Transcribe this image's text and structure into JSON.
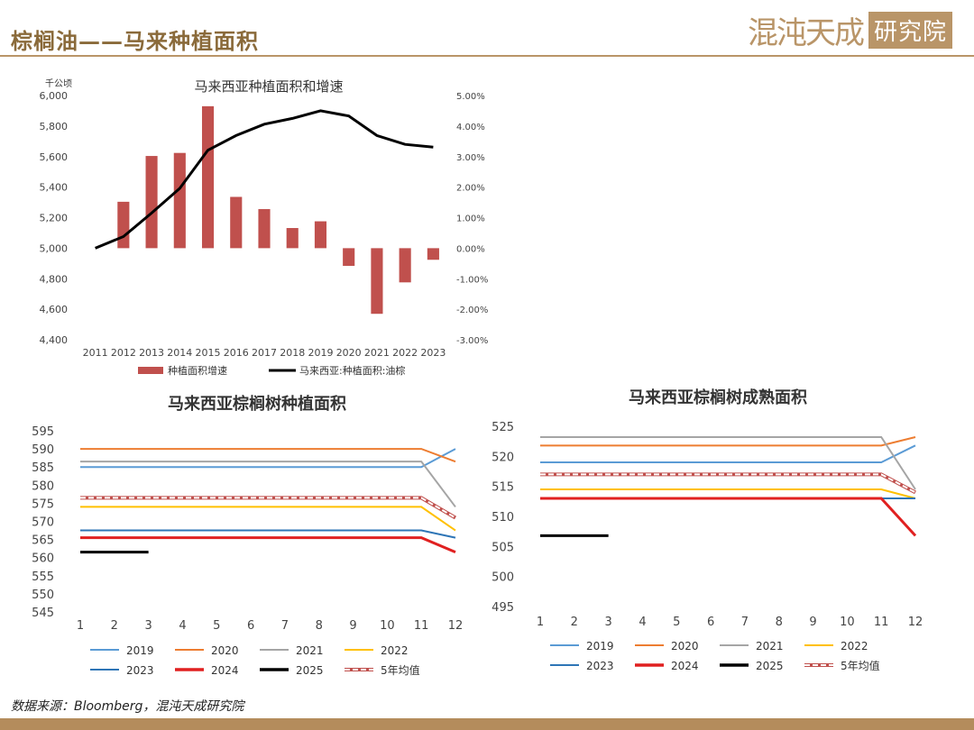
{
  "header": {
    "title": "棕榈油——马来种植面积",
    "logo_text": "混沌天成",
    "logo_box_text": "研究院"
  },
  "footer": {
    "source": "数据来源：Bloomberg，混沌天成研究院"
  },
  "colors": {
    "bar": "#c0504d",
    "line": "#000000",
    "brand": "#b99568",
    "s2019": "#5b9bd5",
    "s2020": "#ed7d31",
    "s2021": "#a5a5a5",
    "s2022": "#ffc000",
    "s2023": "#2e75b6",
    "s2024": "#e02020",
    "s2025": "#000000",
    "avg": "#c0504d"
  },
  "chart_data": [
    {
      "type": "bar+line",
      "title": "马来西亚种植面积和增速",
      "y_left_unit": "千公顷",
      "categories": [
        "2011",
        "2012",
        "2013",
        "2014",
        "2015",
        "2016",
        "2017",
        "2018",
        "2019",
        "2020",
        "2021",
        "2022",
        "2023"
      ],
      "y_left_lim": [
        4400,
        6000
      ],
      "y_left_ticks": [
        "4,400",
        "4,600",
        "4,800",
        "5,000",
        "5,200",
        "5,400",
        "5,600",
        "5,800",
        "6,000"
      ],
      "y_right_lim": [
        -3,
        5
      ],
      "y_right_ticks": [
        "-3.00%",
        "-2.00%",
        "-1.00%",
        "0.00%",
        "1.00%",
        "2.00%",
        "3.00%",
        "4.00%",
        "5.00%"
      ],
      "series": [
        {
          "name": "种植面积增速",
          "kind": "bar",
          "axis": "right",
          "values": [
            null,
            1.52,
            3.02,
            3.12,
            4.65,
            1.68,
            1.28,
            0.66,
            0.88,
            -0.58,
            -2.15,
            -1.12,
            -0.38
          ]
        },
        {
          "name": "马来西亚:种植面积:油棕",
          "kind": "line",
          "axis": "left",
          "values": [
            5000,
            5076,
            5230,
            5392,
            5642,
            5738,
            5812,
            5850,
            5900,
            5866,
            5738,
            5680,
            5662
          ]
        }
      ]
    },
    {
      "type": "line",
      "title": "马来西亚棕榈树种植面积",
      "x": [
        "1",
        "2",
        "3",
        "4",
        "5",
        "6",
        "7",
        "8",
        "9",
        "10",
        "11",
        "12"
      ],
      "ylim": [
        545,
        595
      ],
      "yticks": [
        "545",
        "550",
        "555",
        "560",
        "565",
        "570",
        "575",
        "580",
        "585",
        "590",
        "595"
      ],
      "series": [
        {
          "name": "2019",
          "color_key": "s2019",
          "values": [
            585,
            585,
            585,
            585,
            585,
            585,
            585,
            585,
            585,
            585,
            585,
            590
          ]
        },
        {
          "name": "2020",
          "color_key": "s2020",
          "values": [
            590,
            590,
            590,
            590,
            590,
            590,
            590,
            590,
            590,
            590,
            590,
            586.5
          ]
        },
        {
          "name": "2021",
          "color_key": "s2021",
          "values": [
            586.5,
            586.5,
            586.5,
            586.5,
            586.5,
            586.5,
            586.5,
            586.5,
            586.5,
            586.5,
            586.5,
            574
          ]
        },
        {
          "name": "2022",
          "color_key": "s2022",
          "values": [
            574,
            574,
            574,
            574,
            574,
            574,
            574,
            574,
            574,
            574,
            574,
            567.5
          ]
        },
        {
          "name": "2023",
          "color_key": "s2023",
          "values": [
            567.5,
            567.5,
            567.5,
            567.5,
            567.5,
            567.5,
            567.5,
            567.5,
            567.5,
            567.5,
            567.5,
            565.5
          ]
        },
        {
          "name": "2024",
          "color_key": "s2024",
          "values": [
            565.5,
            565.5,
            565.5,
            565.5,
            565.5,
            565.5,
            565.5,
            565.5,
            565.5,
            565.5,
            565.5,
            561.5
          ]
        },
        {
          "name": "2025",
          "color_key": "s2025",
          "values": [
            561.5,
            561.5,
            561.5,
            null,
            null,
            null,
            null,
            null,
            null,
            null,
            null,
            null
          ]
        },
        {
          "name": "5年均值",
          "color_key": "avg",
          "dashed": true,
          "values": [
            576.5,
            576.5,
            576.5,
            576.5,
            576.5,
            576.5,
            576.5,
            576.5,
            576.5,
            576.5,
            576.5,
            571
          ]
        }
      ]
    },
    {
      "type": "line",
      "title": "马来西亚棕榈树成熟面积",
      "x": [
        "1",
        "2",
        "3",
        "4",
        "5",
        "6",
        "7",
        "8",
        "9",
        "10",
        "11",
        "12"
      ],
      "ylim": [
        495,
        525
      ],
      "yticks": [
        "495",
        "500",
        "505",
        "510",
        "515",
        "520",
        "525"
      ],
      "series": [
        {
          "name": "2019",
          "color_key": "s2019",
          "values": [
            519,
            519,
            519,
            519,
            519,
            519,
            519,
            519,
            519,
            519,
            519,
            521.8
          ]
        },
        {
          "name": "2020",
          "color_key": "s2020",
          "values": [
            521.8,
            521.8,
            521.8,
            521.8,
            521.8,
            521.8,
            521.8,
            521.8,
            521.8,
            521.8,
            521.8,
            523.2
          ]
        },
        {
          "name": "2021",
          "color_key": "s2021",
          "values": [
            523.2,
            523.2,
            523.2,
            523.2,
            523.2,
            523.2,
            523.2,
            523.2,
            523.2,
            523.2,
            523.2,
            514.5
          ]
        },
        {
          "name": "2022",
          "color_key": "s2022",
          "values": [
            514.5,
            514.5,
            514.5,
            514.5,
            514.5,
            514.5,
            514.5,
            514.5,
            514.5,
            514.5,
            514.5,
            513
          ]
        },
        {
          "name": "2023",
          "color_key": "s2023",
          "values": [
            513,
            513,
            513,
            513,
            513,
            513,
            513,
            513,
            513,
            513,
            513,
            513
          ]
        },
        {
          "name": "2024",
          "color_key": "s2024",
          "values": [
            513,
            513,
            513,
            513,
            513,
            513,
            513,
            513,
            513,
            513,
            513,
            506.8
          ]
        },
        {
          "name": "2025",
          "color_key": "s2025",
          "values": [
            506.8,
            506.8,
            506.8,
            null,
            null,
            null,
            null,
            null,
            null,
            null,
            null,
            null
          ]
        },
        {
          "name": "5年均值",
          "color_key": "avg",
          "dashed": true,
          "values": [
            517,
            517,
            517,
            517,
            517,
            517,
            517,
            517,
            517,
            517,
            517,
            514
          ]
        }
      ]
    }
  ]
}
